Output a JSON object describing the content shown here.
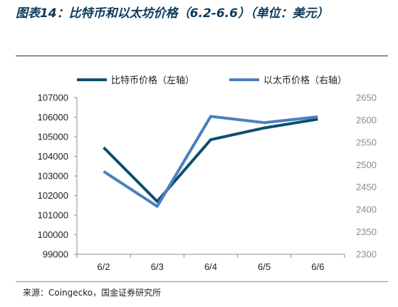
{
  "figure": {
    "title": "图表14：比特币和以太坊价格（6.2-6.6）（单位：美元）",
    "source": "来源：Coingecko，国金证券研究所"
  },
  "chart_data": {
    "type": "line",
    "categories": [
      "6/2",
      "6/3",
      "6/4",
      "6/5",
      "6/6"
    ],
    "series": [
      {
        "name": "比特币价格（左轴）",
        "axis": "left",
        "color": "#0d4f6c",
        "values": [
          104450,
          101700,
          104850,
          105450,
          105900
        ]
      },
      {
        "name": "以太币价格（右轴）",
        "axis": "right",
        "color": "#4a7fc1",
        "values": [
          2485,
          2407,
          2608,
          2594,
          2607
        ]
      }
    ],
    "y_left": {
      "ylim": [
        99000,
        107000
      ],
      "ticks": [
        "107000",
        "106000",
        "105000",
        "104000",
        "103000",
        "102000",
        "101000",
        "100000",
        "99000"
      ]
    },
    "y_right": {
      "ylim": [
        2300,
        2650
      ],
      "ticks": [
        "2650",
        "2600",
        "2550",
        "2500",
        "2450",
        "2400",
        "2350",
        "2300"
      ]
    },
    "grid": false,
    "legend": "top"
  }
}
